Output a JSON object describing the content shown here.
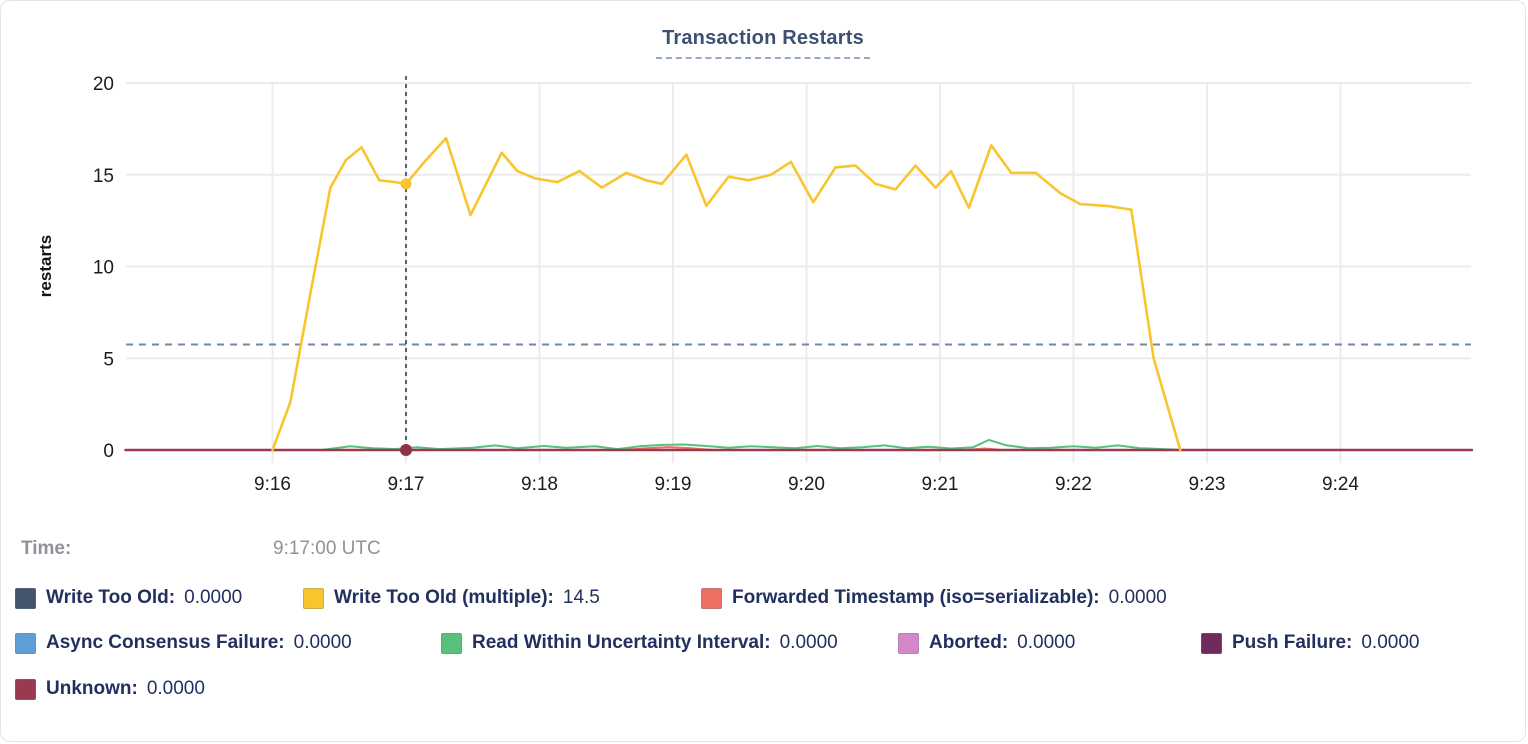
{
  "chart_data": {
    "type": "line",
    "title": "Transaction Restarts",
    "ylabel": "restarts",
    "ylim": [
      0,
      20
    ],
    "y_ticks": [
      "0",
      "5",
      "10",
      "15",
      "20"
    ],
    "x_ticks": [
      "9:16",
      "9:17",
      "9:18",
      "9:19",
      "9:20",
      "9:21",
      "9:22",
      "9:23",
      "9:24"
    ],
    "grid": true,
    "legend_position": "bottom",
    "threshold_line_value": 5.75,
    "crosshair": {
      "time": "9:17:00 UTC",
      "highlight_series": "Write Too Old (multiple)",
      "highlight_value": 14.5,
      "zero_marker_value": 0
    },
    "series": [
      {
        "name": "Write Too Old",
        "color": "#44546d",
        "current_value": 0.0,
        "points": [
          [
            -66,
            0
          ],
          [
            539,
            0
          ]
        ]
      },
      {
        "name": "Async Consensus Failure",
        "color": "#5f9fd6",
        "current_value": 0.0,
        "points": [
          [
            -66,
            0
          ],
          [
            539,
            0
          ]
        ]
      },
      {
        "name": "Aborted",
        "color": "#d587c9",
        "current_value": 0.0,
        "points": [
          [
            -66,
            0
          ],
          [
            539,
            0
          ]
        ]
      },
      {
        "name": "Push Failure",
        "color": "#6f2b60",
        "current_value": 0.0,
        "points": [
          [
            -66,
            0
          ],
          [
            539,
            0
          ]
        ]
      },
      {
        "name": "Forwarded Timestamp (iso=serializable)",
        "color": "#ed6f63",
        "current_value": 0.0,
        "points": [
          [
            -66,
            0
          ],
          [
            158,
            0
          ],
          [
            168,
            0.1
          ],
          [
            178,
            0.16
          ],
          [
            188,
            0.1
          ],
          [
            198,
            0
          ],
          [
            312,
            0
          ],
          [
            320,
            0.08
          ],
          [
            328,
            0
          ],
          [
            539,
            0
          ]
        ]
      },
      {
        "name": "Read Within Uncertainty Interval",
        "color": "#57c17b",
        "current_value": 0.0,
        "points": [
          [
            22,
            0
          ],
          [
            35,
            0.2
          ],
          [
            45,
            0.1
          ],
          [
            55,
            0.05
          ],
          [
            65,
            0.15
          ],
          [
            75,
            0.05
          ],
          [
            90,
            0.12
          ],
          [
            100,
            0.25
          ],
          [
            110,
            0.1
          ],
          [
            122,
            0.22
          ],
          [
            132,
            0.12
          ],
          [
            145,
            0.2
          ],
          [
            155,
            0.05
          ],
          [
            165,
            0.2
          ],
          [
            175,
            0.28
          ],
          [
            185,
            0.3
          ],
          [
            195,
            0.22
          ],
          [
            205,
            0.12
          ],
          [
            215,
            0.2
          ],
          [
            225,
            0.15
          ],
          [
            235,
            0.1
          ],
          [
            245,
            0.22
          ],
          [
            255,
            0.1
          ],
          [
            265,
            0.15
          ],
          [
            275,
            0.25
          ],
          [
            285,
            0.1
          ],
          [
            295,
            0.18
          ],
          [
            305,
            0.08
          ],
          [
            315,
            0.15
          ],
          [
            322,
            0.55
          ],
          [
            330,
            0.25
          ],
          [
            340,
            0.1
          ],
          [
            350,
            0.12
          ],
          [
            360,
            0.2
          ],
          [
            370,
            0.12
          ],
          [
            380,
            0.25
          ],
          [
            390,
            0.1
          ],
          [
            400,
            0.05
          ],
          [
            410,
            0
          ]
        ]
      },
      {
        "name": "Unknown",
        "color": "#9a3a50",
        "current_value": 0.0,
        "points": [
          [
            -66,
            0
          ],
          [
            539,
            0
          ]
        ]
      },
      {
        "name": "Write Too Old (multiple)",
        "color": "#f9c52f",
        "current_value": 14.5,
        "points": [
          [
            0,
            0
          ],
          [
            8,
            2.6
          ],
          [
            17,
            8.5
          ],
          [
            26,
            14.3
          ],
          [
            33,
            15.8
          ],
          [
            40,
            16.5
          ],
          [
            48,
            14.7
          ],
          [
            55,
            14.6
          ],
          [
            60,
            14.5
          ],
          [
            69,
            15.8
          ],
          [
            78,
            17.0
          ],
          [
            89,
            12.8
          ],
          [
            103,
            16.2
          ],
          [
            110,
            15.2
          ],
          [
            118,
            14.8
          ],
          [
            128,
            14.6
          ],
          [
            138,
            15.2
          ],
          [
            148,
            14.3
          ],
          [
            159,
            15.1
          ],
          [
            168,
            14.7
          ],
          [
            175,
            14.5
          ],
          [
            186,
            16.1
          ],
          [
            195,
            13.3
          ],
          [
            205,
            14.9
          ],
          [
            214,
            14.7
          ],
          [
            224,
            15.0
          ],
          [
            233,
            15.7
          ],
          [
            243,
            13.5
          ],
          [
            253,
            15.4
          ],
          [
            262,
            15.5
          ],
          [
            271,
            14.5
          ],
          [
            280,
            14.2
          ],
          [
            289,
            15.5
          ],
          [
            298,
            14.3
          ],
          [
            305,
            15.2
          ],
          [
            313,
            13.2
          ],
          [
            323,
            16.6
          ],
          [
            332,
            15.1
          ],
          [
            343,
            15.1
          ],
          [
            354,
            14.0
          ],
          [
            363,
            13.4
          ],
          [
            375,
            13.3
          ],
          [
            386,
            13.1
          ],
          [
            396,
            5.0
          ],
          [
            408,
            0
          ]
        ]
      }
    ]
  },
  "tooltip": {
    "time_label": "Time:",
    "time_value": "9:17:00 UTC"
  },
  "legend": {
    "rows": [
      {
        "items": [
          {
            "label": "Write Too Old:",
            "value": "0.0000",
            "color": "#44546d"
          },
          {
            "label": "Write Too Old (multiple):",
            "value": "14.5",
            "color": "#f9c52f"
          },
          {
            "label": "Forwarded Timestamp (iso=serializable):",
            "value": "0.0000",
            "color": "#ed6f63"
          }
        ]
      },
      {
        "items": [
          {
            "label": "Async Consensus Failure:",
            "value": "0.0000",
            "color": "#5f9fd6"
          },
          {
            "label": "Read Within Uncertainty Interval:",
            "value": "0.0000",
            "color": "#57c17b"
          },
          {
            "label": "Aborted:",
            "value": "0.0000",
            "color": "#d587c9"
          },
          {
            "label": "Push Failure:",
            "value": "0.0000",
            "color": "#6f2b60"
          }
        ]
      },
      {
        "items": [
          {
            "label": "Unknown:",
            "value": "0.0000",
            "color": "#9a3a50"
          }
        ]
      }
    ]
  },
  "colors": {
    "title": "#3d5071",
    "legend_text": "#223060",
    "gridline": "#ececec",
    "crosshair": "#2f4054",
    "threshold_dash": "#6f88a5",
    "time_text": "#8f9399"
  }
}
